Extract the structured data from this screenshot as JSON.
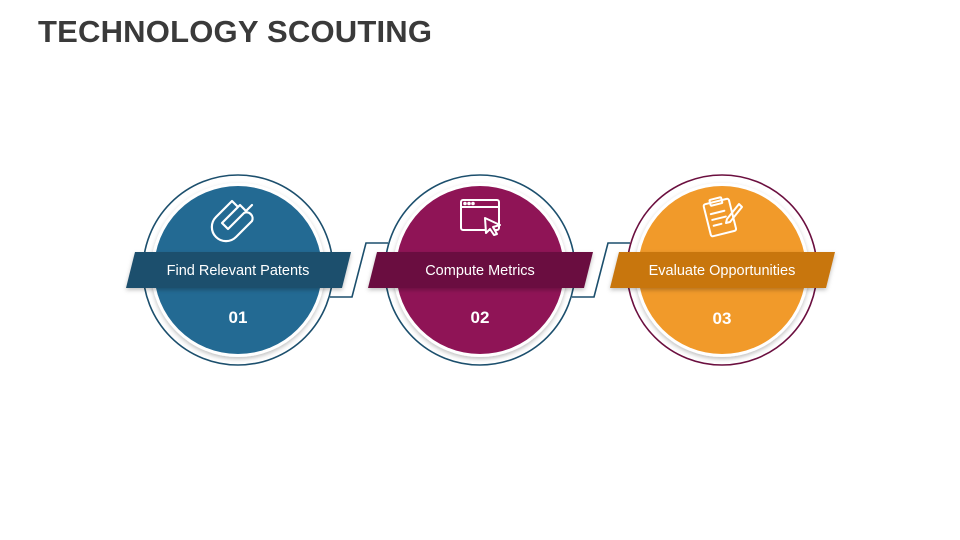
{
  "title": "TECHNOLOGY SCOUTING",
  "steps": [
    {
      "label": "Find Relevant Patents",
      "number": "01",
      "icon": "magnet-icon",
      "color": "#236a93",
      "ribbon_color": "#1c4f6d"
    },
    {
      "label": "Compute Metrics",
      "number": "02",
      "icon": "browser-cursor-icon",
      "color": "#8f1456",
      "ribbon_color": "#6b0f3f"
    },
    {
      "label": "Evaluate Opportunities",
      "number": "03",
      "icon": "clipboard-pencil-icon",
      "color": "#f19a2a",
      "ribbon_color": "#c8760f"
    }
  ]
}
